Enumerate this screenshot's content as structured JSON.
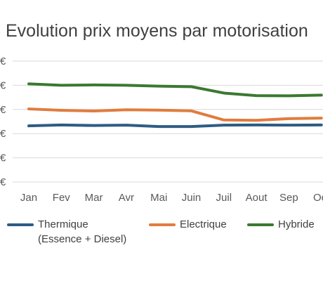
{
  "chart_data": {
    "type": "line",
    "title": "Evolution prix moyens par motorisation",
    "categories": [
      "Jan",
      "Fev",
      "Mar",
      "Avr",
      "Mai",
      "Juin",
      "Juil",
      "Aout",
      "Sep",
      "Oct"
    ],
    "series": [
      {
        "name": "Thermique",
        "name_sub": "(Essence + Diesel)",
        "color": "#2e5c84",
        "values": [
          32.5,
          33.0,
          32.7,
          32.9,
          32.1,
          32.1,
          32.9,
          33.0,
          32.9,
          33.0
        ]
      },
      {
        "name": "Electrique",
        "color": "#e07c3e",
        "values": [
          42.3,
          41.5,
          41.1,
          41.8,
          41.6,
          41.2,
          35.9,
          35.7,
          36.7,
          37.0
        ]
      },
      {
        "name": "Hybride",
        "color": "#3a7930",
        "values": [
          56.8,
          56.0,
          56.2,
          56.0,
          55.5,
          55.2,
          51.5,
          50.0,
          49.9,
          50.3
        ]
      }
    ],
    "ylim": [
      0,
      70
    ],
    "grid": true,
    "legend": "bottom"
  }
}
